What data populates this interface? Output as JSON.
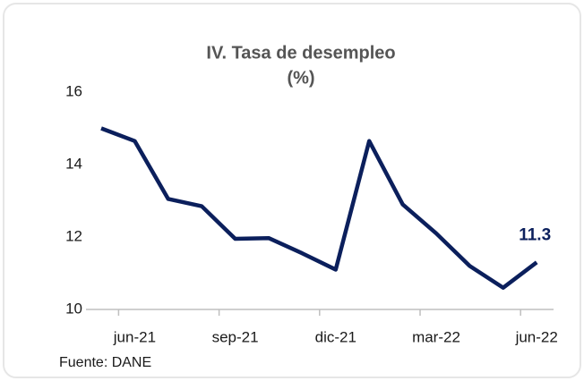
{
  "chart_data": {
    "type": "line",
    "title": "IV. Tasa de desempleo",
    "subtitle": "(%)",
    "source": "Fuente: DANE",
    "categories": [
      null,
      "jun-21",
      null,
      null,
      "sep-21",
      null,
      null,
      "dic-21",
      null,
      null,
      "mar-22",
      null,
      null,
      "jun-22"
    ],
    "series": [
      {
        "name": "Tasa de desempleo",
        "color": "#0b1f5c",
        "values": [
          15.0,
          14.65,
          13.05,
          12.85,
          11.95,
          11.97,
          11.55,
          11.1,
          14.65,
          12.9,
          12.1,
          11.2,
          10.6,
          11.3
        ]
      }
    ],
    "ylim": [
      10,
      16
    ],
    "yticks": [
      10,
      12,
      14,
      16
    ],
    "grid": false
  }
}
